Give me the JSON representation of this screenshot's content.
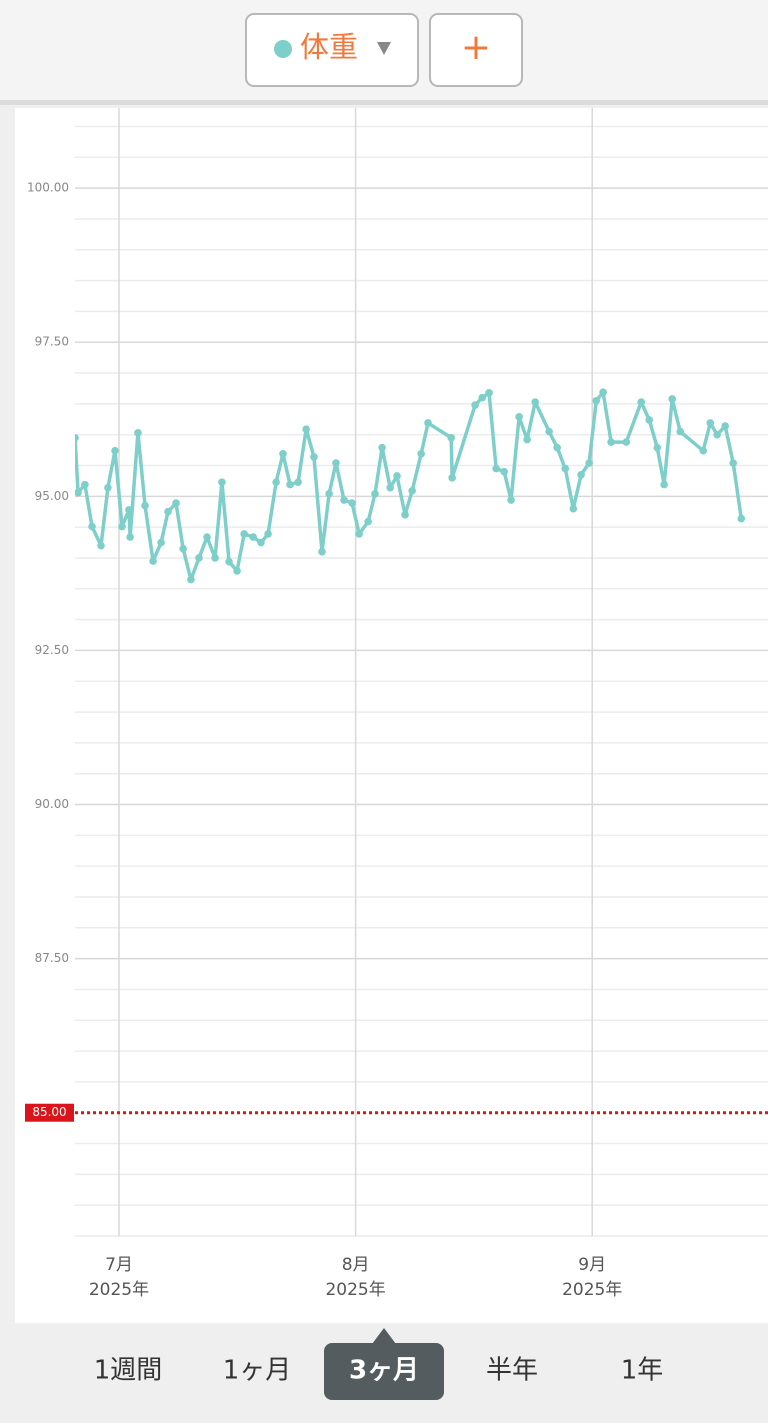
{
  "chart_data": {
    "type": "line",
    "series": [
      {
        "name": "体重",
        "color": "#7ecfca",
        "values": [
          95.95,
          95.06,
          95.19,
          94.51,
          94.2,
          95.14,
          95.74,
          94.51,
          94.78,
          94.34,
          96.03,
          94.85,
          93.95,
          94.25,
          94.75,
          94.89,
          94.15,
          93.65,
          94.0,
          94.34,
          94.0,
          95.23,
          93.94,
          93.79,
          94.39,
          94.34,
          94.25,
          94.39,
          95.23,
          95.69,
          95.19,
          95.23,
          96.09,
          95.64,
          94.1,
          95.04,
          95.54,
          94.94,
          94.89,
          94.39,
          94.59,
          95.04,
          95.79,
          95.14,
          95.33,
          94.7,
          95.09,
          95.69,
          96.19,
          95.95,
          95.3,
          96.48,
          96.6,
          96.68,
          95.45,
          95.4,
          94.94,
          96.29,
          95.92,
          96.53,
          96.05,
          95.79,
          95.45,
          94.8,
          95.35,
          95.54,
          96.55,
          96.69,
          95.88,
          95.88,
          96.53,
          96.24,
          95.79,
          95.19,
          96.58,
          96.05,
          95.74,
          96.19,
          96.0,
          96.14,
          95.54,
          94.64
        ]
      }
    ],
    "x": [
      6.814,
      6.827,
      6.856,
      6.886,
      6.924,
      6.953,
      6.983,
      7.013,
      7.042,
      7.047,
      7.08,
      7.11,
      7.144,
      7.178,
      7.207,
      7.241,
      7.271,
      7.304,
      7.338,
      7.372,
      7.406,
      7.435,
      7.465,
      7.499,
      7.529,
      7.567,
      7.6,
      7.63,
      7.664,
      7.693,
      7.723,
      7.757,
      7.791,
      7.824,
      7.858,
      7.888,
      7.917,
      7.951,
      7.985,
      8.015,
      8.053,
      8.082,
      8.112,
      8.146,
      8.175,
      8.209,
      8.239,
      8.277,
      8.306,
      8.404,
      8.408,
      8.505,
      8.535,
      8.564,
      8.594,
      8.628,
      8.657,
      8.691,
      8.725,
      8.759,
      8.818,
      8.852,
      8.886,
      8.92,
      8.953,
      8.987,
      9.017,
      9.046,
      9.08,
      9.144,
      9.207,
      9.241,
      9.275,
      9.304,
      9.338,
      9.372,
      9.469,
      9.499,
      9.528,
      9.562,
      9.596,
      9.63
    ],
    "xlim": [
      6.814,
      9.743
    ],
    "xticks": [
      {
        "value": 7,
        "label": "7月",
        "sublabel": "2025年"
      },
      {
        "value": 8,
        "label": "8月",
        "sublabel": "2025年"
      },
      {
        "value": 9,
        "label": "9月",
        "sublabel": "2025年"
      }
    ],
    "ylim": [
      83,
      101.3
    ],
    "yticks": [
      {
        "value": 100,
        "label": "100.00"
      },
      {
        "value": 97.5,
        "label": "97.50"
      },
      {
        "value": 95,
        "label": "95.00"
      },
      {
        "value": 92.5,
        "label": "92.50"
      },
      {
        "value": 90,
        "label": "90.00"
      },
      {
        "value": 87.5,
        "label": "87.50"
      }
    ],
    "yminor": [
      83,
      83.5,
      84,
      84.5,
      85.5,
      86,
      86.5,
      87,
      88,
      88.5,
      89,
      89.5,
      90.5,
      91,
      91.5,
      92,
      93,
      93.5,
      94,
      94.5,
      95.5,
      96,
      96.5,
      97,
      98,
      98.5,
      99,
      99.5,
      100.5,
      101
    ],
    "target": {
      "value": 85,
      "label": "85.00",
      "color": "#d9141b"
    },
    "grid": true
  },
  "header": {
    "add_button": "+"
  },
  "ranges": [
    "1週間",
    "1ヶ月",
    "3ヶ月",
    "半年",
    "1年"
  ],
  "selected_range": "3ヶ月"
}
